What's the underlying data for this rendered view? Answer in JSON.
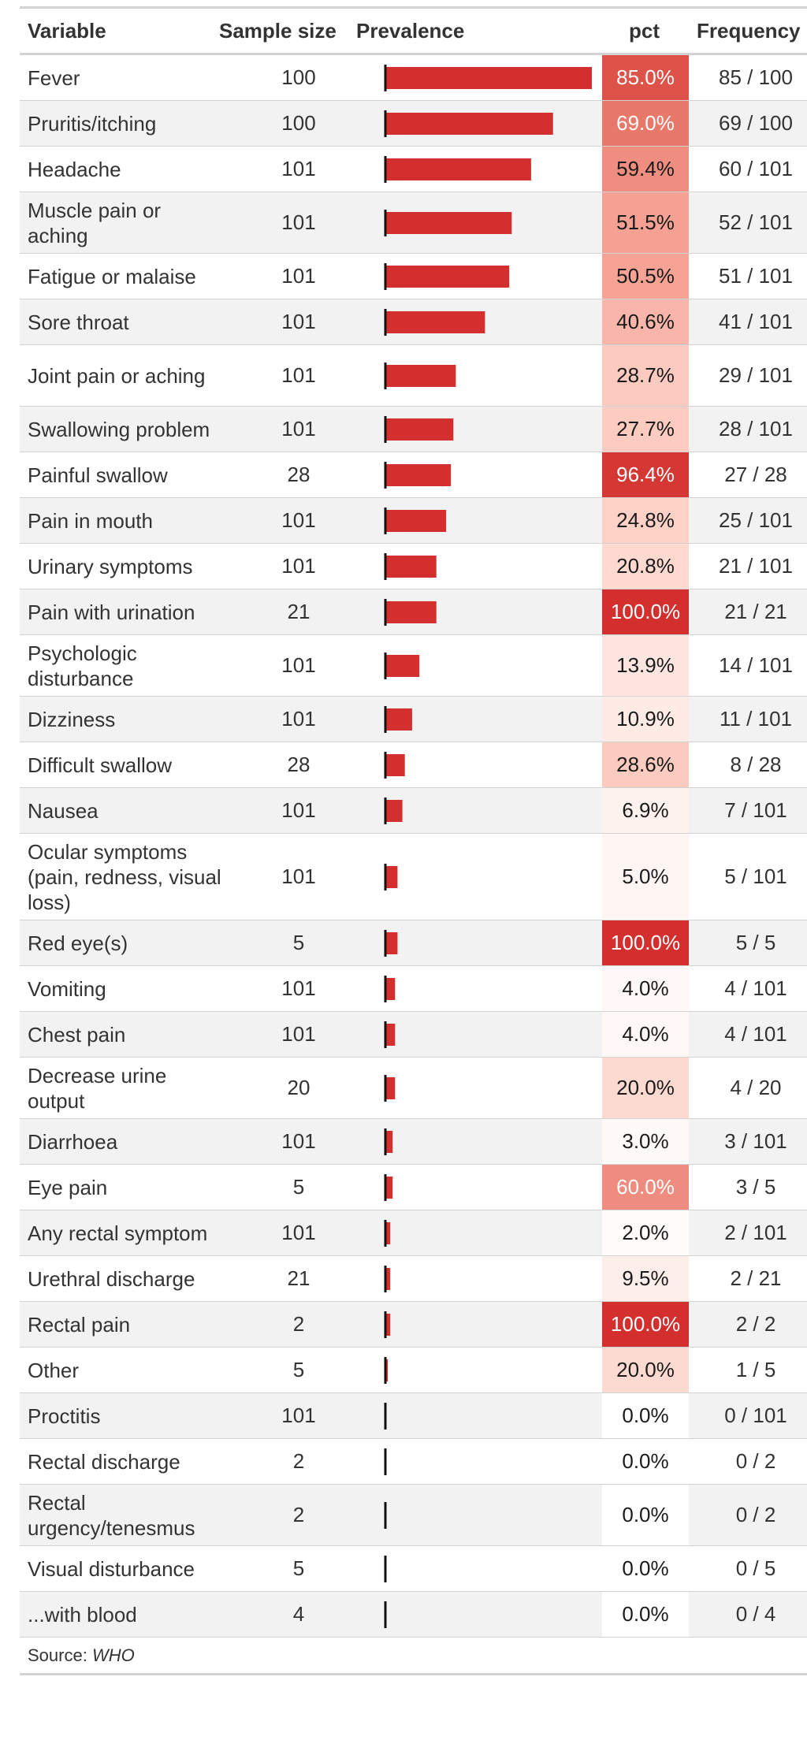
{
  "chart_data": {
    "type": "table",
    "columns": [
      "Variable",
      "Sample size",
      "Prevalence",
      "pct",
      "Frequency"
    ],
    "bar_color": "#d32f2f",
    "bar_scale_max": 85,
    "rows": [
      {
        "variable": "Fever",
        "sample_size": "100",
        "prevalence": 85,
        "pct": "85.0%",
        "pct_value": 85.0,
        "frequency": "85 / 100"
      },
      {
        "variable": "Pruritis/itching",
        "sample_size": "100",
        "prevalence": 69,
        "pct": "69.0%",
        "pct_value": 69.0,
        "frequency": "69 / 100"
      },
      {
        "variable": "Headache",
        "sample_size": "101",
        "prevalence": 60,
        "pct": "59.4%",
        "pct_value": 59.4,
        "frequency": "60 / 101"
      },
      {
        "variable": "Muscle pain or aching",
        "sample_size": "101",
        "prevalence": 52,
        "pct": "51.5%",
        "pct_value": 51.5,
        "frequency": "52 / 101"
      },
      {
        "variable": "Fatigue or malaise",
        "sample_size": "101",
        "prevalence": 51,
        "pct": "50.5%",
        "pct_value": 50.5,
        "frequency": "51 / 101"
      },
      {
        "variable": "Sore throat",
        "sample_size": "101",
        "prevalence": 41,
        "pct": "40.6%",
        "pct_value": 40.6,
        "frequency": "41 / 101"
      },
      {
        "variable": "Joint pain or aching",
        "sample_size": "101",
        "prevalence": 29,
        "pct": "28.7%",
        "pct_value": 28.7,
        "frequency": "29 / 101"
      },
      {
        "variable": "Swallowing problem",
        "sample_size": "101",
        "prevalence": 28,
        "pct": "27.7%",
        "pct_value": 27.7,
        "frequency": "28 / 101"
      },
      {
        "variable": "Painful swallow",
        "sample_size": "28",
        "prevalence": 27,
        "pct": "96.4%",
        "pct_value": 96.4,
        "frequency": "27 / 28"
      },
      {
        "variable": "Pain in mouth",
        "sample_size": "101",
        "prevalence": 25,
        "pct": "24.8%",
        "pct_value": 24.8,
        "frequency": "25 / 101"
      },
      {
        "variable": "Urinary symptoms",
        "sample_size": "101",
        "prevalence": 21,
        "pct": "20.8%",
        "pct_value": 20.8,
        "frequency": "21 / 101"
      },
      {
        "variable": "Pain with urination",
        "sample_size": "21",
        "prevalence": 21,
        "pct": "100.0%",
        "pct_value": 100.0,
        "frequency": "21 / 21"
      },
      {
        "variable": "Psychologic disturbance",
        "sample_size": "101",
        "prevalence": 14,
        "pct": "13.9%",
        "pct_value": 13.9,
        "frequency": "14 / 101"
      },
      {
        "variable": "Dizziness",
        "sample_size": "101",
        "prevalence": 11,
        "pct": "10.9%",
        "pct_value": 10.9,
        "frequency": "11 / 101"
      },
      {
        "variable": "Difficult swallow",
        "sample_size": "28",
        "prevalence": 8,
        "pct": "28.6%",
        "pct_value": 28.6,
        "frequency": "8 / 28"
      },
      {
        "variable": "Nausea",
        "sample_size": "101",
        "prevalence": 7,
        "pct": "6.9%",
        "pct_value": 6.9,
        "frequency": "7 / 101"
      },
      {
        "variable": "Ocular symptoms (pain, redness, visual loss)",
        "sample_size": "101",
        "prevalence": 5,
        "pct": "5.0%",
        "pct_value": 5.0,
        "frequency": "5 / 101"
      },
      {
        "variable": "Red eye(s)",
        "sample_size": "5",
        "prevalence": 5,
        "pct": "100.0%",
        "pct_value": 100.0,
        "frequency": "5 / 5"
      },
      {
        "variable": "Vomiting",
        "sample_size": "101",
        "prevalence": 4,
        "pct": "4.0%",
        "pct_value": 4.0,
        "frequency": "4 / 101"
      },
      {
        "variable": "Chest pain",
        "sample_size": "101",
        "prevalence": 4,
        "pct": "4.0%",
        "pct_value": 4.0,
        "frequency": "4 / 101"
      },
      {
        "variable": "Decrease urine output",
        "sample_size": "20",
        "prevalence": 4,
        "pct": "20.0%",
        "pct_value": 20.0,
        "frequency": "4 / 20"
      },
      {
        "variable": "Diarrhoea",
        "sample_size": "101",
        "prevalence": 3,
        "pct": "3.0%",
        "pct_value": 3.0,
        "frequency": "3 / 101"
      },
      {
        "variable": "Eye pain",
        "sample_size": "5",
        "prevalence": 3,
        "pct": "60.0%",
        "pct_value": 60.0,
        "frequency": "3 / 5"
      },
      {
        "variable": "Any rectal symptom",
        "sample_size": "101",
        "prevalence": 2,
        "pct": "2.0%",
        "pct_value": 2.0,
        "frequency": "2 / 101"
      },
      {
        "variable": "Urethral discharge",
        "sample_size": "21",
        "prevalence": 2,
        "pct": "9.5%",
        "pct_value": 9.5,
        "frequency": "2 / 21"
      },
      {
        "variable": "Rectal pain",
        "sample_size": "2",
        "prevalence": 2,
        "pct": "100.0%",
        "pct_value": 100.0,
        "frequency": "2 / 2"
      },
      {
        "variable": "Other",
        "sample_size": "5",
        "prevalence": 1,
        "pct": "20.0%",
        "pct_value": 20.0,
        "frequency": "1 / 5"
      },
      {
        "variable": "Proctitis",
        "sample_size": "101",
        "prevalence": 0,
        "pct": "0.0%",
        "pct_value": 0.0,
        "frequency": "0 / 101"
      },
      {
        "variable": "Rectal discharge",
        "sample_size": "2",
        "prevalence": 0,
        "pct": "0.0%",
        "pct_value": 0.0,
        "frequency": "0 / 2"
      },
      {
        "variable": "Rectal urgency/tenesmus",
        "sample_size": "2",
        "prevalence": 0,
        "pct": "0.0%",
        "pct_value": 0.0,
        "frequency": "0 / 2"
      },
      {
        "variable": "Visual disturbance",
        "sample_size": "5",
        "prevalence": 0,
        "pct": "0.0%",
        "pct_value": 0.0,
        "frequency": "0 / 5"
      },
      {
        "variable": "...with blood",
        "sample_size": "4",
        "prevalence": 0,
        "pct": "0.0%",
        "pct_value": 0.0,
        "frequency": "0 / 4"
      }
    ]
  },
  "footer": {
    "source_label": "Source: ",
    "source_value": "WHO"
  }
}
